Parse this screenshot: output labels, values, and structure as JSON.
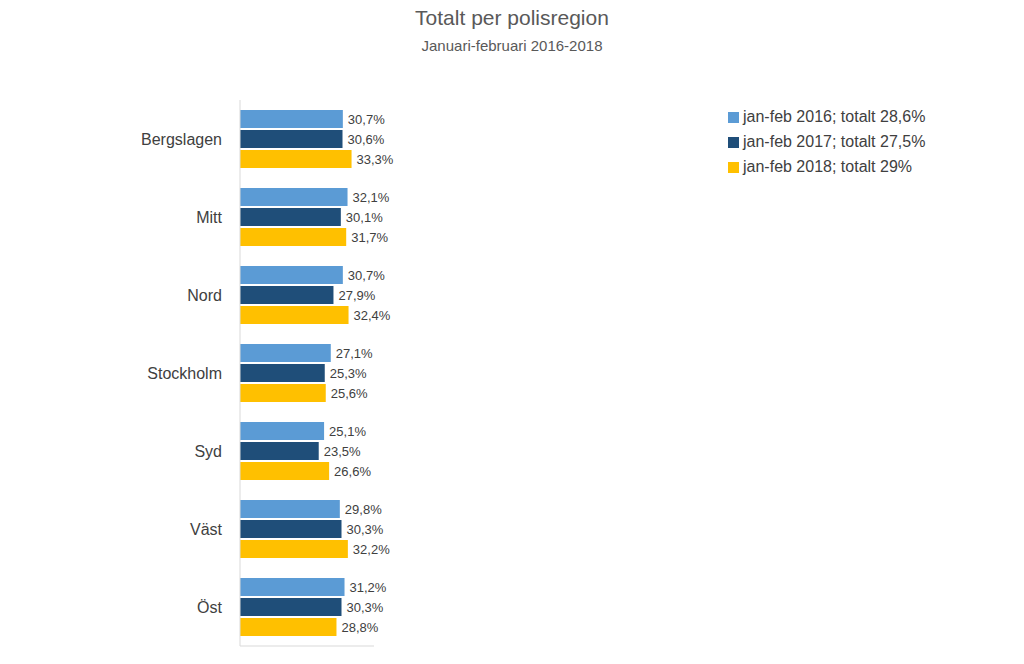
{
  "chart_data": {
    "type": "bar",
    "title": "Totalt per polisregion",
    "subtitle": "Januari-februari 2016-2018",
    "orientation": "horizontal",
    "categories": [
      "Bergslagen",
      "Mitt",
      "Nord",
      "Stockholm",
      "Syd",
      "Väst",
      "Öst"
    ],
    "series": [
      {
        "name": "jan-feb 2016; totalt 28,6%",
        "color": "#5b9bd5",
        "values": [
          30.7,
          32.1,
          30.7,
          27.1,
          25.1,
          29.8,
          31.2
        ],
        "value_labels": [
          "30,7%",
          "32,1%",
          "30,7%",
          "27,1%",
          "25,1%",
          "29,8%",
          "31,2%"
        ]
      },
      {
        "name": "jan-feb 2017; totalt 27,5%",
        "color": "#1f4e79",
        "values": [
          30.6,
          30.1,
          27.9,
          25.3,
          23.5,
          30.3,
          30.3
        ],
        "value_labels": [
          "30,6%",
          "30,1%",
          "27,9%",
          "25,3%",
          "23,5%",
          "30,3%",
          "30,3%"
        ]
      },
      {
        "name": "jan-feb 2018; totalt 29%",
        "color": "#ffc000",
        "values": [
          33.3,
          31.7,
          32.4,
          25.6,
          26.6,
          32.2,
          28.8
        ],
        "value_labels": [
          "33,3%",
          "31,7%",
          "32,4%",
          "25,6%",
          "26,6%",
          "32,2%",
          "28,8%"
        ]
      }
    ],
    "xlim": [
      0,
      40
    ],
    "grid": false,
    "legend": "upper right",
    "data_labels": true,
    "tick_labels": "y"
  }
}
